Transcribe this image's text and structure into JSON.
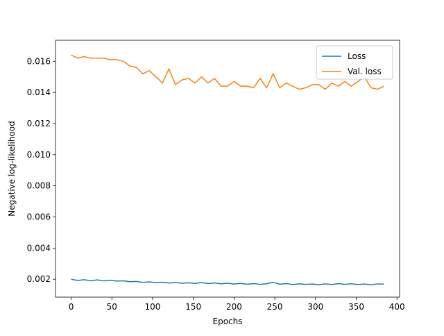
{
  "chart_data": {
    "type": "line",
    "xlabel": "Epochs",
    "ylabel": "Negative log-likelihood",
    "x": [
      0,
      8,
      16,
      24,
      32,
      40,
      48,
      56,
      64,
      72,
      80,
      88,
      96,
      104,
      112,
      120,
      128,
      136,
      144,
      152,
      160,
      168,
      176,
      184,
      192,
      200,
      208,
      216,
      224,
      232,
      240,
      248,
      256,
      264,
      272,
      280,
      288,
      296,
      304,
      312,
      320,
      328,
      336,
      344,
      352,
      360,
      368,
      376,
      384
    ],
    "series": [
      {
        "name": "Loss",
        "color": "#1f77b4",
        "values": [
          0.002,
          0.00192,
          0.00197,
          0.0019,
          0.00196,
          0.00189,
          0.00193,
          0.00188,
          0.0019,
          0.00184,
          0.00186,
          0.0018,
          0.00183,
          0.00178,
          0.00181,
          0.00176,
          0.00179,
          0.00174,
          0.00177,
          0.00173,
          0.00178,
          0.00172,
          0.00176,
          0.00171,
          0.00174,
          0.00169,
          0.00173,
          0.00168,
          0.00172,
          0.00167,
          0.00171,
          0.0018,
          0.00168,
          0.00172,
          0.00166,
          0.0017,
          0.00167,
          0.00169,
          0.00165,
          0.0017,
          0.00166,
          0.00172,
          0.00167,
          0.00171,
          0.00166,
          0.00169,
          0.00165,
          0.0017,
          0.00168
        ]
      },
      {
        "name": "Val. loss",
        "color": "#ff7f0e",
        "values": [
          0.0164,
          0.0162,
          0.0163,
          0.0162,
          0.0162,
          0.0162,
          0.0161,
          0.0161,
          0.016,
          0.0157,
          0.0156,
          0.0152,
          0.0154,
          0.015,
          0.0146,
          0.0155,
          0.0145,
          0.0148,
          0.0149,
          0.0146,
          0.015,
          0.0146,
          0.0149,
          0.0144,
          0.0144,
          0.0147,
          0.0144,
          0.0144,
          0.0143,
          0.0149,
          0.0143,
          0.0152,
          0.0143,
          0.0146,
          0.0144,
          0.0142,
          0.0143,
          0.0145,
          0.0145,
          0.0142,
          0.0146,
          0.0144,
          0.0147,
          0.0144,
          0.0147,
          0.015,
          0.0143,
          0.0142,
          0.0144
        ]
      }
    ],
    "xlim": [
      -19.2,
      403.2
    ],
    "xticks": [
      0,
      50,
      100,
      150,
      200,
      250,
      300,
      350,
      400
    ],
    "ylim": [
      0.00085,
      0.01735
    ],
    "yticks": [
      0.002,
      0.004,
      0.006,
      0.008,
      {
        "value": 0.01,
        "label": "0.010"
      },
      0.012,
      0.014,
      0.016
    ],
    "legend": "upper right"
  }
}
